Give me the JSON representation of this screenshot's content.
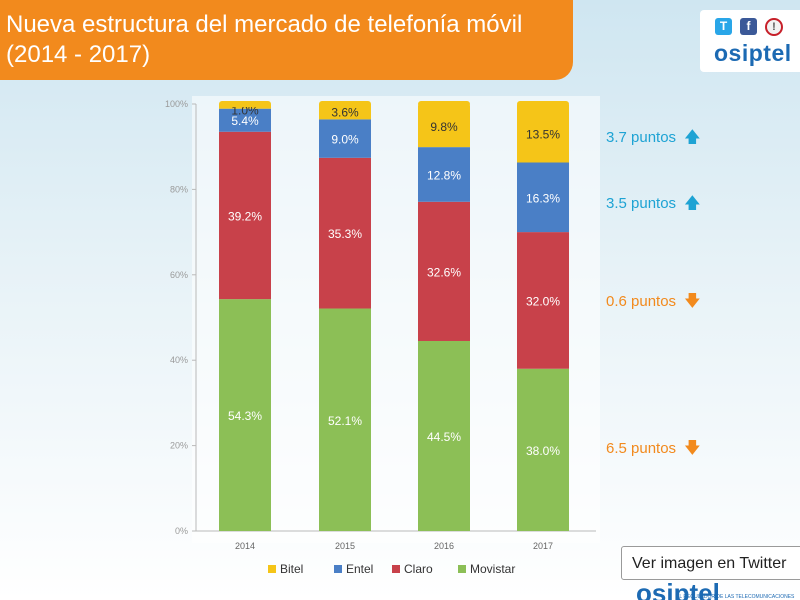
{
  "header": {
    "title_line1": "Nueva estructura del mercado de telefonía móvil",
    "title_line2": "(2014 - 2017)"
  },
  "brand": {
    "twitter_icon": "T",
    "facebook_icon": "f",
    "info_icon": "!",
    "name": "osiptel"
  },
  "changes": [
    {
      "label": "3.7 puntos",
      "direction": "up",
      "arrow": "🡅"
    },
    {
      "label": "3.5 puntos",
      "direction": "up",
      "arrow": "🡅"
    },
    {
      "label": "0.6 puntos",
      "direction": "down",
      "arrow": "🡇"
    },
    {
      "label": "6.5 puntos",
      "direction": "down",
      "arrow": "🡇"
    }
  ],
  "twitter_button": {
    "label": "Ver imagen en Twitter"
  },
  "footer": {
    "logo_text": "osiptel",
    "tagline": "EL REGULADOR DE LAS TELECOMUNICACIONES"
  },
  "colors": {
    "Bitel": "#f5c518",
    "Entel": "#4a7fc6",
    "Claro": "#c8414a",
    "Movistar": "#8cbf56",
    "accent_orange": "#f28a1d",
    "accent_blue": "#1ea3d4"
  },
  "chart_data": {
    "type": "bar",
    "stacked": true,
    "title": "Nueva estructura del mercado de telefonía móvil (2014 - 2017)",
    "xlabel": "",
    "ylabel": "",
    "ylim": [
      0,
      100
    ],
    "yticks": [
      "0%",
      "20%",
      "40%",
      "60%",
      "80%",
      "100%"
    ],
    "ytick_values": [
      0,
      20,
      40,
      60,
      80,
      100
    ],
    "categories": [
      "2014",
      "2015",
      "2016",
      "2017"
    ],
    "series": [
      {
        "name": "Movistar",
        "values": [
          54.3,
          52.1,
          44.5,
          38.0
        ],
        "labels": [
          "54.3%",
          "52.1%",
          "44.5%",
          "38.0%"
        ]
      },
      {
        "name": "Claro",
        "values": [
          39.2,
          35.3,
          32.6,
          32.0
        ],
        "labels": [
          "39.2%",
          "35.3%",
          "32.6%",
          "32.0%"
        ]
      },
      {
        "name": "Entel",
        "values": [
          5.4,
          9.0,
          12.8,
          16.3
        ],
        "labels": [
          "5.4%",
          "9.0%",
          "12.8%",
          "16.3%"
        ]
      },
      {
        "name": "Bitel",
        "values": [
          1.0,
          3.6,
          9.8,
          13.5
        ],
        "labels": [
          "1.0%",
          "3.6%",
          "9.8%",
          "13.5%"
        ]
      }
    ],
    "legend": [
      "Bitel",
      "Entel",
      "Claro",
      "Movistar"
    ],
    "legend_position": "bottom",
    "grid": false
  }
}
